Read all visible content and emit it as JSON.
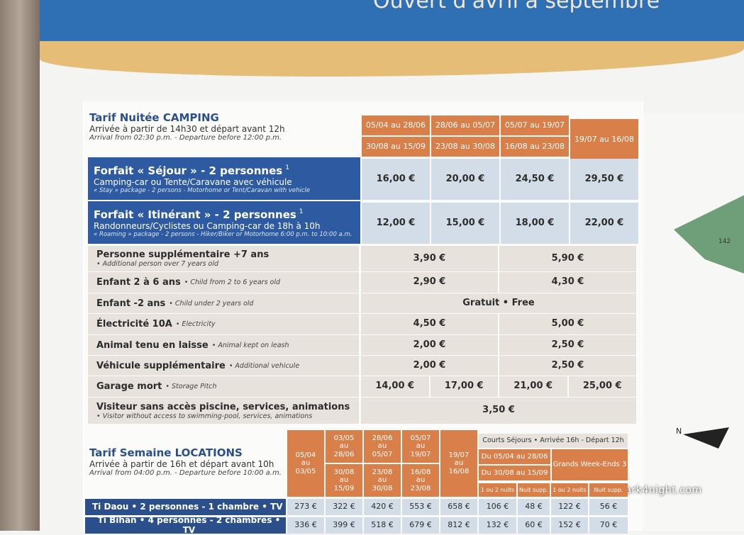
{
  "header": {
    "banner": "Ouvert d'avril à septembre"
  },
  "camping": {
    "title": "Tarif Nuitée CAMPING",
    "subtitle": "Arrivée à partir de 14h30 et départ avant 12h",
    "subtitle_en": "Arrival from 02:30 p.m. - Departure before 12:00 p.m.",
    "periods": [
      [
        "05/04 au 28/06",
        "30/08 au 15/09"
      ],
      [
        "28/06 au 05/07",
        "23/08 au 30/08"
      ],
      [
        "05/07 au 19/07",
        "16/08 au 23/08"
      ],
      [
        "19/07 au 16/08"
      ]
    ],
    "packages": [
      {
        "title": "Forfait « Séjour » - 2 personnes",
        "note": "1",
        "line": "Camping-car ou Tente/Caravane avec véhicule",
        "line_en": "« Stay » package - 2 persons - Motorhome or Tent/Caravan with vehicle",
        "prices": [
          "16,00 €",
          "20,00 €",
          "24,50 €",
          "29,50 €"
        ]
      },
      {
        "title": "Forfait « Itinérant » - 2 personnes",
        "note": "1",
        "line": "Randonneurs/Cyclistes ou Camping-car de 18h à 10h",
        "line_en": "« Roaming » package - 2 persons - Hiker/Biker or Motorhome 6:00 p.m. to 10:00 a.m.",
        "prices": [
          "12,00 €",
          "15,00 €",
          "18,00 €",
          "22,00 €"
        ]
      }
    ],
    "extras": [
      {
        "label": "Personne supplémentaire +7 ans",
        "label_en": "• Additional person over 7 years old",
        "prices": [
          "3,90 €",
          "5,90 €"
        ]
      },
      {
        "label": "Enfant 2 à 6 ans",
        "label_en": "• Child from 2 to 6 years old",
        "prices": [
          "2,90 €",
          "4,30 €"
        ]
      },
      {
        "label": "Enfant -2 ans",
        "label_en": "• Child under 2 years old",
        "prices": [
          "Gratuit • Free"
        ]
      },
      {
        "label": "Électricité 10A",
        "label_en": "• Electricity",
        "prices": [
          "4,50 €",
          "5,00 €"
        ]
      },
      {
        "label": "Animal tenu en laisse",
        "label_en": "• Animal kept on leash",
        "prices": [
          "2,00 €",
          "2,50 €"
        ]
      },
      {
        "label": "Véhicule supplémentaire",
        "label_en": "• Additional vehicule",
        "prices": [
          "2,00 €",
          "2,50 €"
        ]
      },
      {
        "label": "Garage mort",
        "label_en": "• Storage Pitch",
        "prices": [
          "14,00 €",
          "17,00 €",
          "21,00 €",
          "25,00 €"
        ]
      },
      {
        "label": "Visiteur sans accès piscine, services, animations",
        "label_en": "• Visitor without access to swimming-pool, services, animations",
        "prices": [
          "3,50 €"
        ]
      }
    ]
  },
  "locations": {
    "title": "Tarif Semaine LOCATIONS",
    "subtitle": "Arrivée à partir de 16h et départ avant 10h",
    "subtitle_en": "Arrival from 04:00 p.m. - Departure before 10:00 a.m.",
    "periods": [
      [
        "05/04 au 03/05"
      ],
      [
        "03/05 au 28/06",
        "30/08 au 15/09"
      ],
      [
        "28/06 au 05/07",
        "23/08 au 30/08"
      ],
      [
        "05/07 au 19/07",
        "16/08 au 23/08"
      ],
      [
        "19/07 au 16/08"
      ]
    ],
    "short_stays": {
      "title": "Courts Séjours • Arrivée 16h - Départ 12h",
      "periods": [
        "Du 05/04 au 28/06",
        "Du 30/08 au 15/09"
      ],
      "weekends": "Grands Week-Ends 3",
      "sub": [
        "1 ou 2 nuits",
        "Nuit supp.",
        "1 ou 2 nuits",
        "Nuit supp."
      ]
    },
    "rows": [
      {
        "label": "Ti Daou • 2 personnes - 1 chambre • TV",
        "prices": [
          "273 €",
          "322 €",
          "420 €",
          "553 €",
          "658 €",
          "106 €",
          "48 €",
          "122 €",
          "56 €"
        ]
      },
      {
        "label": "Ti Bihan • 4 personnes - 2 chambres • TV",
        "prices": [
          "336 €",
          "399 €",
          "518 €",
          "679 €",
          "812 €",
          "132 €",
          "60 €",
          "152 €",
          "70 €"
        ]
      }
    ]
  },
  "map": {
    "pitch": "142"
  },
  "watermark": "park4night.com"
}
